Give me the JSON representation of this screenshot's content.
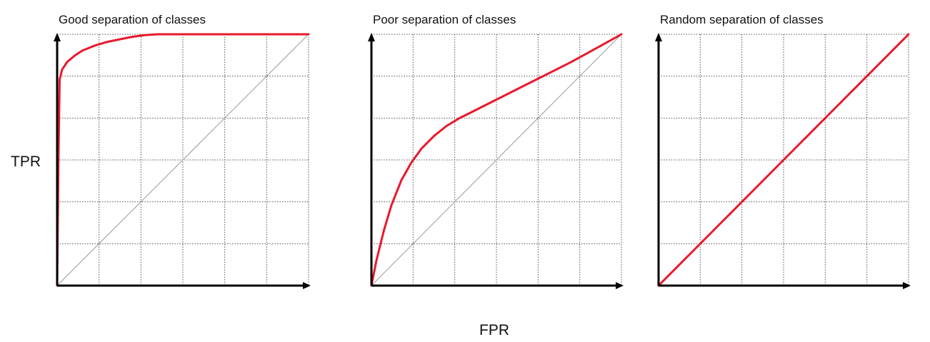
{
  "figure": {
    "ylabel": "TPR",
    "xlabel": "FPR"
  },
  "colors": {
    "curve": "#e8192c",
    "diagonal": "#9a9a9a",
    "axis": "#000000",
    "grid": "#555555"
  },
  "chart_data": [
    {
      "type": "line",
      "title": "Good separation of classes",
      "xlabel": "FPR",
      "ylabel": "TPR",
      "xlim": [
        0,
        1
      ],
      "ylim": [
        0,
        1
      ],
      "grid": true,
      "grid_divisions": 6,
      "reference_line": "diagonal",
      "series": [
        {
          "x": [
            0,
            0.005,
            0.01,
            0.02,
            0.04,
            0.07,
            0.1,
            0.15,
            0.2,
            0.25,
            0.3,
            0.35,
            0.4,
            0.45,
            0.5,
            0.6,
            0.7,
            0.8,
            0.9,
            1.0
          ],
          "y": [
            0,
            0.5,
            0.82,
            0.86,
            0.89,
            0.915,
            0.935,
            0.955,
            0.97,
            0.98,
            0.99,
            0.997,
            1.0,
            1.0,
            1.0,
            1.0,
            1.0,
            1.0,
            1.0,
            1.0
          ]
        }
      ]
    },
    {
      "type": "line",
      "title": "Poor separation of classes",
      "xlabel": "FPR",
      "ylabel": "TPR",
      "xlim": [
        0,
        1
      ],
      "ylim": [
        0,
        1
      ],
      "grid": true,
      "grid_divisions": 6,
      "reference_line": "diagonal",
      "series": [
        {
          "x": [
            0,
            0.02,
            0.05,
            0.08,
            0.12,
            0.16,
            0.2,
            0.25,
            0.3,
            0.35,
            0.4,
            0.5,
            0.6,
            0.7,
            0.8,
            0.9,
            1.0
          ],
          "y": [
            0,
            0.1,
            0.22,
            0.32,
            0.42,
            0.49,
            0.545,
            0.595,
            0.635,
            0.665,
            0.69,
            0.74,
            0.79,
            0.84,
            0.89,
            0.945,
            1.0
          ]
        }
      ]
    },
    {
      "type": "line",
      "title": "Random separation of classes",
      "xlabel": "FPR",
      "ylabel": "TPR",
      "xlim": [
        0,
        1
      ],
      "ylim": [
        0,
        1
      ],
      "grid": true,
      "grid_divisions": 6,
      "reference_line": "diagonal",
      "series": [
        {
          "x": [
            0,
            0.25,
            0.5,
            0.75,
            1.0
          ],
          "y": [
            0,
            0.25,
            0.5,
            0.75,
            1.0
          ]
        }
      ]
    }
  ]
}
